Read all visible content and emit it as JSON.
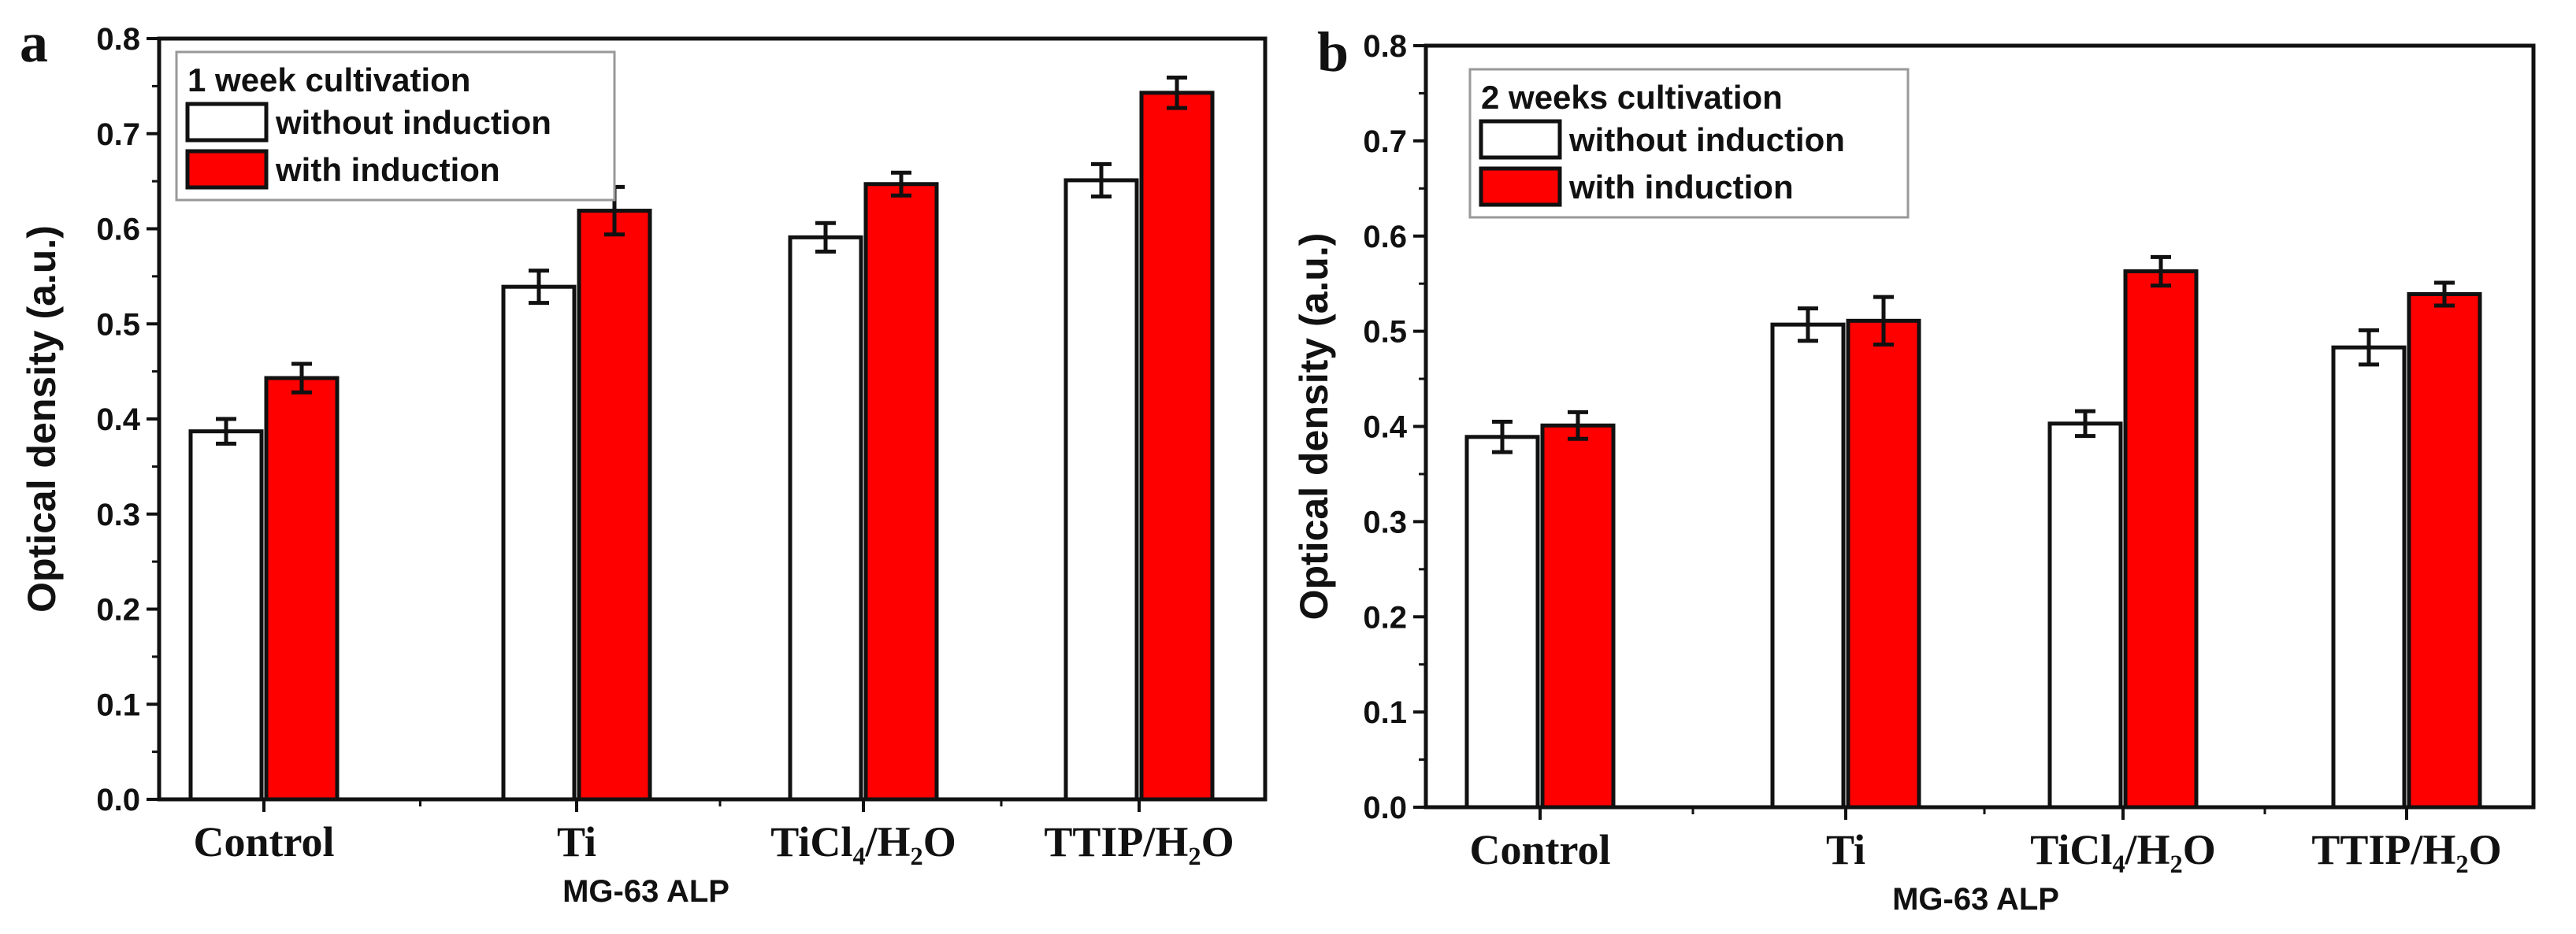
{
  "chart_data": [
    {
      "type": "bar",
      "panel": "a",
      "legend_title": "1 week cultivation",
      "categories": [
        "Control",
        "Ti",
        "TiCl₄/H₂O",
        "TTIP/H₂O"
      ],
      "series": [
        {
          "name": "without induction",
          "color": "#ffffff",
          "values": [
            0.387,
            0.539,
            0.591,
            0.651
          ],
          "errors": [
            0.013,
            0.017,
            0.015,
            0.017
          ]
        },
        {
          "name": "with induction",
          "color": "#ff0000",
          "values": [
            0.443,
            0.619,
            0.647,
            0.743
          ],
          "errors": [
            0.015,
            0.025,
            0.012,
            0.016
          ]
        }
      ],
      "xlabel": "MG-63 ALP",
      "ylabel": "Optical density (a.u.)",
      "ylim": [
        0,
        0.8
      ],
      "yticks": [
        "0.0",
        "0.1",
        "0.2",
        "0.3",
        "0.4",
        "0.5",
        "0.6",
        "0.7",
        "0.8"
      ],
      "legend_position": "top-left"
    },
    {
      "type": "bar",
      "panel": "b",
      "legend_title": "2 weeks cultivation",
      "categories": [
        "Control",
        "Ti",
        "TiCl₄/H₂O",
        "TTIP/H₂O"
      ],
      "series": [
        {
          "name": "without induction",
          "color": "#ffffff",
          "values": [
            0.389,
            0.507,
            0.403,
            0.483
          ],
          "errors": [
            0.016,
            0.017,
            0.013,
            0.018
          ]
        },
        {
          "name": "with induction",
          "color": "#ff0000",
          "values": [
            0.401,
            0.511,
            0.563,
            0.539
          ],
          "errors": [
            0.014,
            0.025,
            0.015,
            0.012
          ]
        }
      ],
      "xlabel": "MG-63 ALP",
      "ylabel": "Optical density (a.u.)",
      "ylim": [
        0,
        0.8
      ],
      "yticks": [
        "0.0",
        "0.1",
        "0.2",
        "0.3",
        "0.4",
        "0.5",
        "0.6",
        "0.7",
        "0.8"
      ],
      "legend_position": "top-left"
    }
  ]
}
